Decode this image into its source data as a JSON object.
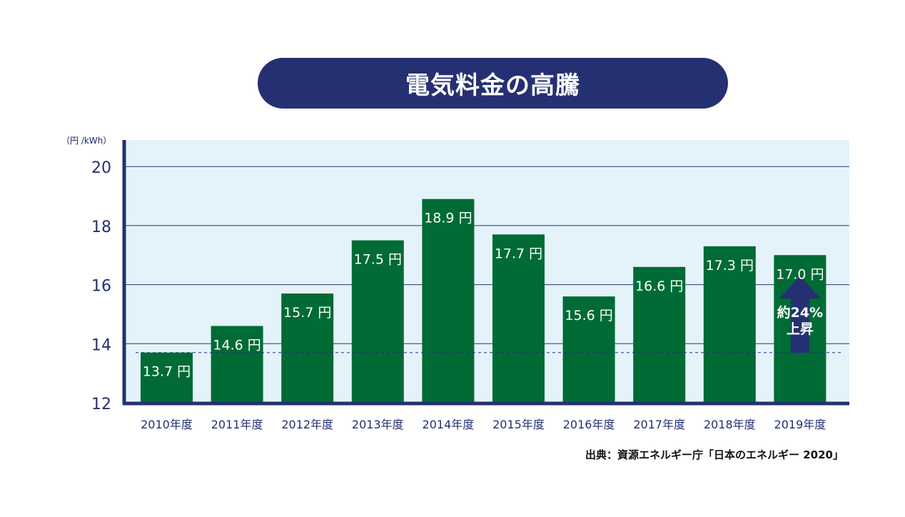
{
  "title": "電気料金の高騰",
  "unit_label": "（円 /kWh）",
  "source": "出典：資源エネルギー庁「日本のエネルギー 2020」",
  "annotation": {
    "line1": "約24%",
    "line2": "上昇"
  },
  "colors": {
    "title_bg": "#253072",
    "plot_bg": "#e4f3fa",
    "bar": "#006b35",
    "axis": "#253072",
    "grid": "#2a3478",
    "arrow": "#253072",
    "label_text": "#ffffff",
    "tick_text": "#253072"
  },
  "chart_data": {
    "type": "bar",
    "title": "電気料金の高騰",
    "ylabel": "（円 /kWh）",
    "xlabel": "",
    "categories": [
      "2010年度",
      "2011年度",
      "2012年度",
      "2013年度",
      "2014年度",
      "2015年度",
      "2016年度",
      "2017年度",
      "2018年度",
      "2019年度"
    ],
    "values": [
      13.7,
      14.6,
      15.7,
      17.5,
      18.9,
      17.7,
      15.6,
      16.6,
      17.3,
      17.0
    ],
    "data_labels": [
      "13.7 円",
      "14.6 円",
      "15.7 円",
      "17.5 円",
      "18.9 円",
      "17.7 円",
      "15.6 円",
      "16.6 円",
      "17.3 円",
      "17.0 円"
    ],
    "ylim": [
      12,
      20.9
    ],
    "yticks": [
      12,
      14,
      16,
      18,
      20
    ],
    "grid": true,
    "reference_line": 13.7
  }
}
